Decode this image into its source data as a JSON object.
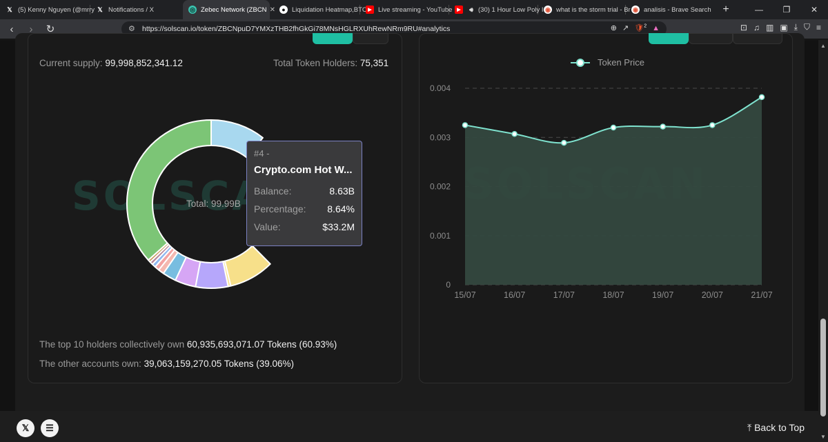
{
  "browser": {
    "tabs": [
      {
        "label": "(5) Kenny Nguyen (@mrry",
        "icon": "x-logo-icon",
        "active": false
      },
      {
        "label": "Notifications / X",
        "icon": "x-logo-icon",
        "active": false
      },
      {
        "label": "Zebec Network (ZBCN",
        "icon": "solscan-icon",
        "active": true
      },
      {
        "label": "Liquidation Heatmap,BTC",
        "icon": "coinglass-icon",
        "active": false
      },
      {
        "label": "Live streaming - YouTube",
        "icon": "youtube-icon",
        "active": false
      },
      {
        "label": "(30) 1 Hour Low Poly I",
        "icon": "youtube-icon",
        "active": false
      },
      {
        "label": "what is the storm trial - Br",
        "icon": "brave-search-icon",
        "active": false
      },
      {
        "label": "analisis - Brave Search",
        "icon": "brave-search-icon",
        "active": false
      }
    ],
    "url": "https://solscan.io/token/ZBCNpuD7YMXzTHB2fhGkGi78MNsHGLRXUhRewNRm9RU#analytics",
    "shield_badge": "2"
  },
  "holders_panel": {
    "supply_label": "Current supply:",
    "supply_value": "99,998,852,341.12",
    "holders_label": "Total Token Holders:",
    "holders_value": "75,351",
    "watermark": "SOLSCAN",
    "total_label": "Total: 99.99B",
    "tooltip": {
      "rank": "#4 -",
      "name": "Crypto.com Hot W...",
      "balance_label": "Balance:",
      "balance_value": "8.63B",
      "percentage_label": "Percentage:",
      "percentage_value": "8.64%",
      "value_label": "Value:",
      "value_value": "$33.2M"
    },
    "top10_label": "The top 10 holders collectively own",
    "top10_value": "60,935,693,071.07 Tokens (60.93%)",
    "others_label": "The other accounts own:",
    "others_value": "39,063,159,270.05 Tokens (39.06%)",
    "donut_segments": [
      {
        "value": 36.5,
        "color": "#7cc576"
      },
      {
        "value": 10.5,
        "color": "#a8d8ef"
      },
      {
        "value": 8.64,
        "color": "#f7e08a"
      },
      {
        "value": 0.5,
        "color": "#f7e08a"
      },
      {
        "value": 6.2,
        "color": "#b6a7fb"
      },
      {
        "value": 4.0,
        "color": "#d6a6f5"
      },
      {
        "value": 2.6,
        "color": "#78bde0"
      },
      {
        "value": 1.1,
        "color": "#f4b8b0"
      },
      {
        "value": 0.9,
        "color": "#f2a3a3"
      },
      {
        "value": 0.7,
        "color": "#8fb7f0"
      },
      {
        "value": 0.6,
        "color": "#b7869b"
      },
      {
        "value": 0.5,
        "color": "#c79a5b"
      }
    ]
  },
  "price_panel": {
    "watermark": "SOLSCAN",
    "chart_data": {
      "type": "area",
      "legend": [
        "Token Price"
      ],
      "legend_position": "top-center",
      "x": [
        "15/07",
        "16/07",
        "17/07",
        "18/07",
        "19/07",
        "20/07",
        "21/07"
      ],
      "series": [
        {
          "name": "Token Price",
          "values": [
            0.00325,
            0.00307,
            0.00289,
            0.0032,
            0.00322,
            0.00325,
            0.00382
          ]
        }
      ],
      "y_ticks": [
        "0",
        "0.001",
        "0.002",
        "0.003",
        "0.004"
      ],
      "ylim": [
        0,
        0.004
      ],
      "grid": true,
      "colors": {
        "line": "#7fe3cf",
        "fill": "#34483f"
      }
    }
  },
  "footer": {
    "back_to_top": "Back to Top"
  }
}
